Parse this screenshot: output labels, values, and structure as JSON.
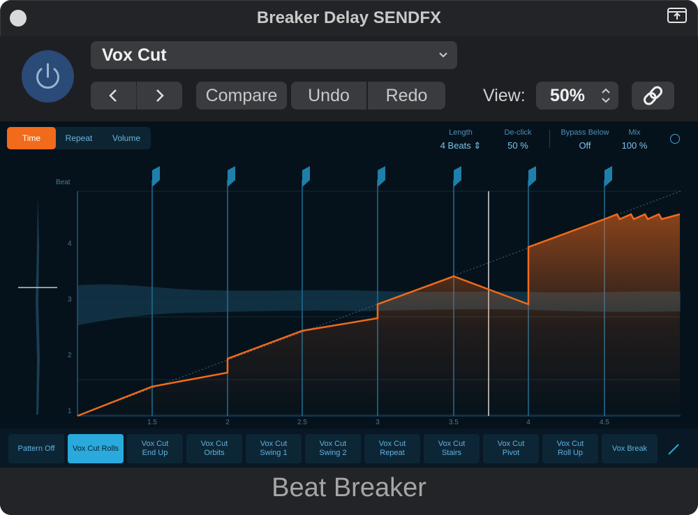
{
  "window": {
    "title": "Breaker Delay SENDFX"
  },
  "header": {
    "preset": "Vox Cut",
    "buttons": {
      "compare": "Compare",
      "undo": "Undo",
      "redo": "Redo"
    },
    "view_label": "View:",
    "view_value": "50%"
  },
  "editor": {
    "tabs": [
      {
        "label": "Time",
        "active": true
      },
      {
        "label": "Repeat",
        "active": false
      },
      {
        "label": "Volume",
        "active": false
      }
    ],
    "params": {
      "length": {
        "label": "Length",
        "value": "4 Beats"
      },
      "declick": {
        "label": "De-click",
        "value": "50 %"
      },
      "bypass": {
        "label": "Bypass Below",
        "value": "Off"
      },
      "mix": {
        "label": "Mix",
        "value": "100 %"
      }
    },
    "graph": {
      "y_label": "Beat",
      "y_ticks": [
        "1",
        "2",
        "3",
        "4"
      ],
      "x_ticks": [
        "1.5",
        "2",
        "2.5",
        "3",
        "3.5",
        "4",
        "4.5"
      ]
    }
  },
  "patterns": [
    {
      "label": "Pattern Off",
      "active": false
    },
    {
      "label": "Vox Cut Rolls",
      "active": true
    },
    {
      "label": "Vox Cut\nEnd Up",
      "active": false
    },
    {
      "label": "Vox Cut\nOrbits",
      "active": false
    },
    {
      "label": "Vox Cut\nSwing 1",
      "active": false
    },
    {
      "label": "Vox Cut\nSwing 2",
      "active": false
    },
    {
      "label": "Vox Cut\nRepeat",
      "active": false
    },
    {
      "label": "Vox Cut\nStairs",
      "active": false
    },
    {
      "label": "Vox Cut\nPivot",
      "active": false
    },
    {
      "label": "Vox Cut\nRoll Up",
      "active": false
    },
    {
      "label": "Vox Break",
      "active": false
    }
  ],
  "footer": {
    "brand": "Beat Breaker"
  },
  "colors": {
    "accent_orange": "#f26a1b",
    "accent_blue": "#2aa9dc",
    "background": "#06121b"
  }
}
